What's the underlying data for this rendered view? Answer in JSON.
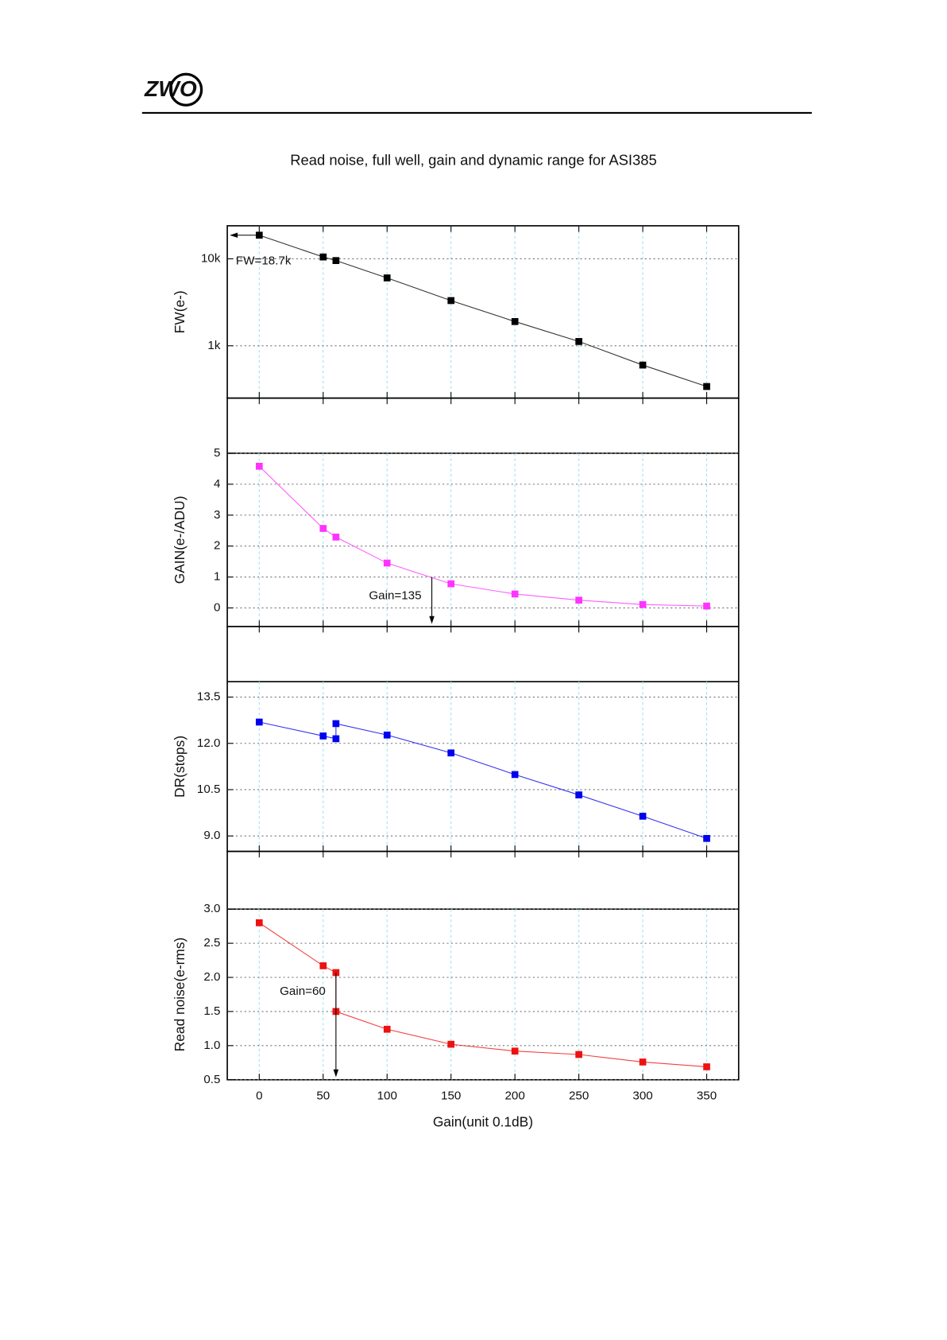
{
  "header": {
    "logo": "ZWO"
  },
  "chart_data": [
    {
      "type": "line",
      "title": "Read noise, full well, gain and dynamic range for ASI385",
      "ylabel": "FW(e-)",
      "log_y": true,
      "grid": true,
      "color": "#000000",
      "x": [
        0,
        50,
        60,
        100,
        150,
        200,
        250,
        300,
        350
      ],
      "values": [
        18700,
        10500,
        9550,
        6030,
        3310,
        1900,
        1120,
        600,
        340
      ],
      "xlim": [
        -25,
        375
      ],
      "xticks": [
        0,
        50,
        100,
        150,
        200,
        250,
        300,
        350
      ],
      "ylim": [
        250,
        24000
      ],
      "yticks": [
        {
          "value": 1000,
          "label": "1k"
        },
        {
          "value": 10000,
          "label": "10k"
        }
      ],
      "annotations": [
        {
          "text": "FW=18.7k"
        }
      ]
    },
    {
      "type": "line",
      "ylabel": "GAIN(e-/ADU)",
      "grid": true,
      "color": "#ff33ff",
      "x": [
        0,
        50,
        60,
        100,
        150,
        200,
        250,
        300,
        350
      ],
      "values": [
        4.58,
        2.57,
        2.29,
        1.45,
        0.78,
        0.45,
        0.25,
        0.11,
        0.06
      ],
      "xlim": [
        -25,
        375
      ],
      "xticks": [
        0,
        50,
        100,
        150,
        200,
        250,
        300,
        350
      ],
      "ylim": [
        -0.6,
        5
      ],
      "yticks": [
        0,
        1,
        2,
        3,
        4,
        5
      ],
      "annotations": [
        {
          "text": "Gain=135",
          "x": 135,
          "y": 1
        }
      ]
    },
    {
      "type": "line",
      "ylabel": "DR(stops)",
      "grid": true,
      "color": "#0000ee",
      "x": [
        0,
        50,
        60,
        60,
        100,
        150,
        200,
        250,
        300,
        350
      ],
      "values": [
        12.69,
        12.24,
        12.15,
        12.64,
        12.27,
        11.69,
        10.99,
        10.33,
        9.64,
        8.92
      ],
      "xlim": [
        -25,
        375
      ],
      "xticks": [
        0,
        50,
        100,
        150,
        200,
        250,
        300,
        350
      ],
      "ylim": [
        8.5,
        14.0
      ],
      "yticks": [
        {
          "value": 9,
          "label": "9.0"
        },
        10.5,
        {
          "value": 12,
          "label": "12.0"
        },
        13.5
      ]
    },
    {
      "type": "line",
      "ylabel": "Read noise(e-rms)",
      "xlabel": "Gain(unit 0.1dB)",
      "grid": true,
      "color": "#ee1111",
      "x": [
        0,
        50,
        60,
        60,
        100,
        150,
        200,
        250,
        300,
        350
      ],
      "values": [
        2.8,
        2.17,
        2.07,
        1.5,
        1.24,
        1.02,
        0.92,
        0.87,
        0.76,
        0.69
      ],
      "xlim": [
        -25,
        375
      ],
      "xticks": [
        0,
        50,
        100,
        150,
        200,
        250,
        300,
        350
      ],
      "ylim": [
        0.5,
        3.0
      ],
      "yticks": [
        0.5,
        {
          "value": 1,
          "label": "1.0"
        },
        1.5,
        {
          "value": 2,
          "label": "2.0"
        },
        2.5,
        {
          "value": 3,
          "label": "3.0"
        }
      ],
      "annotations": [
        {
          "text": "Gain=60",
          "x": 60,
          "y": 2.07
        }
      ]
    }
  ]
}
